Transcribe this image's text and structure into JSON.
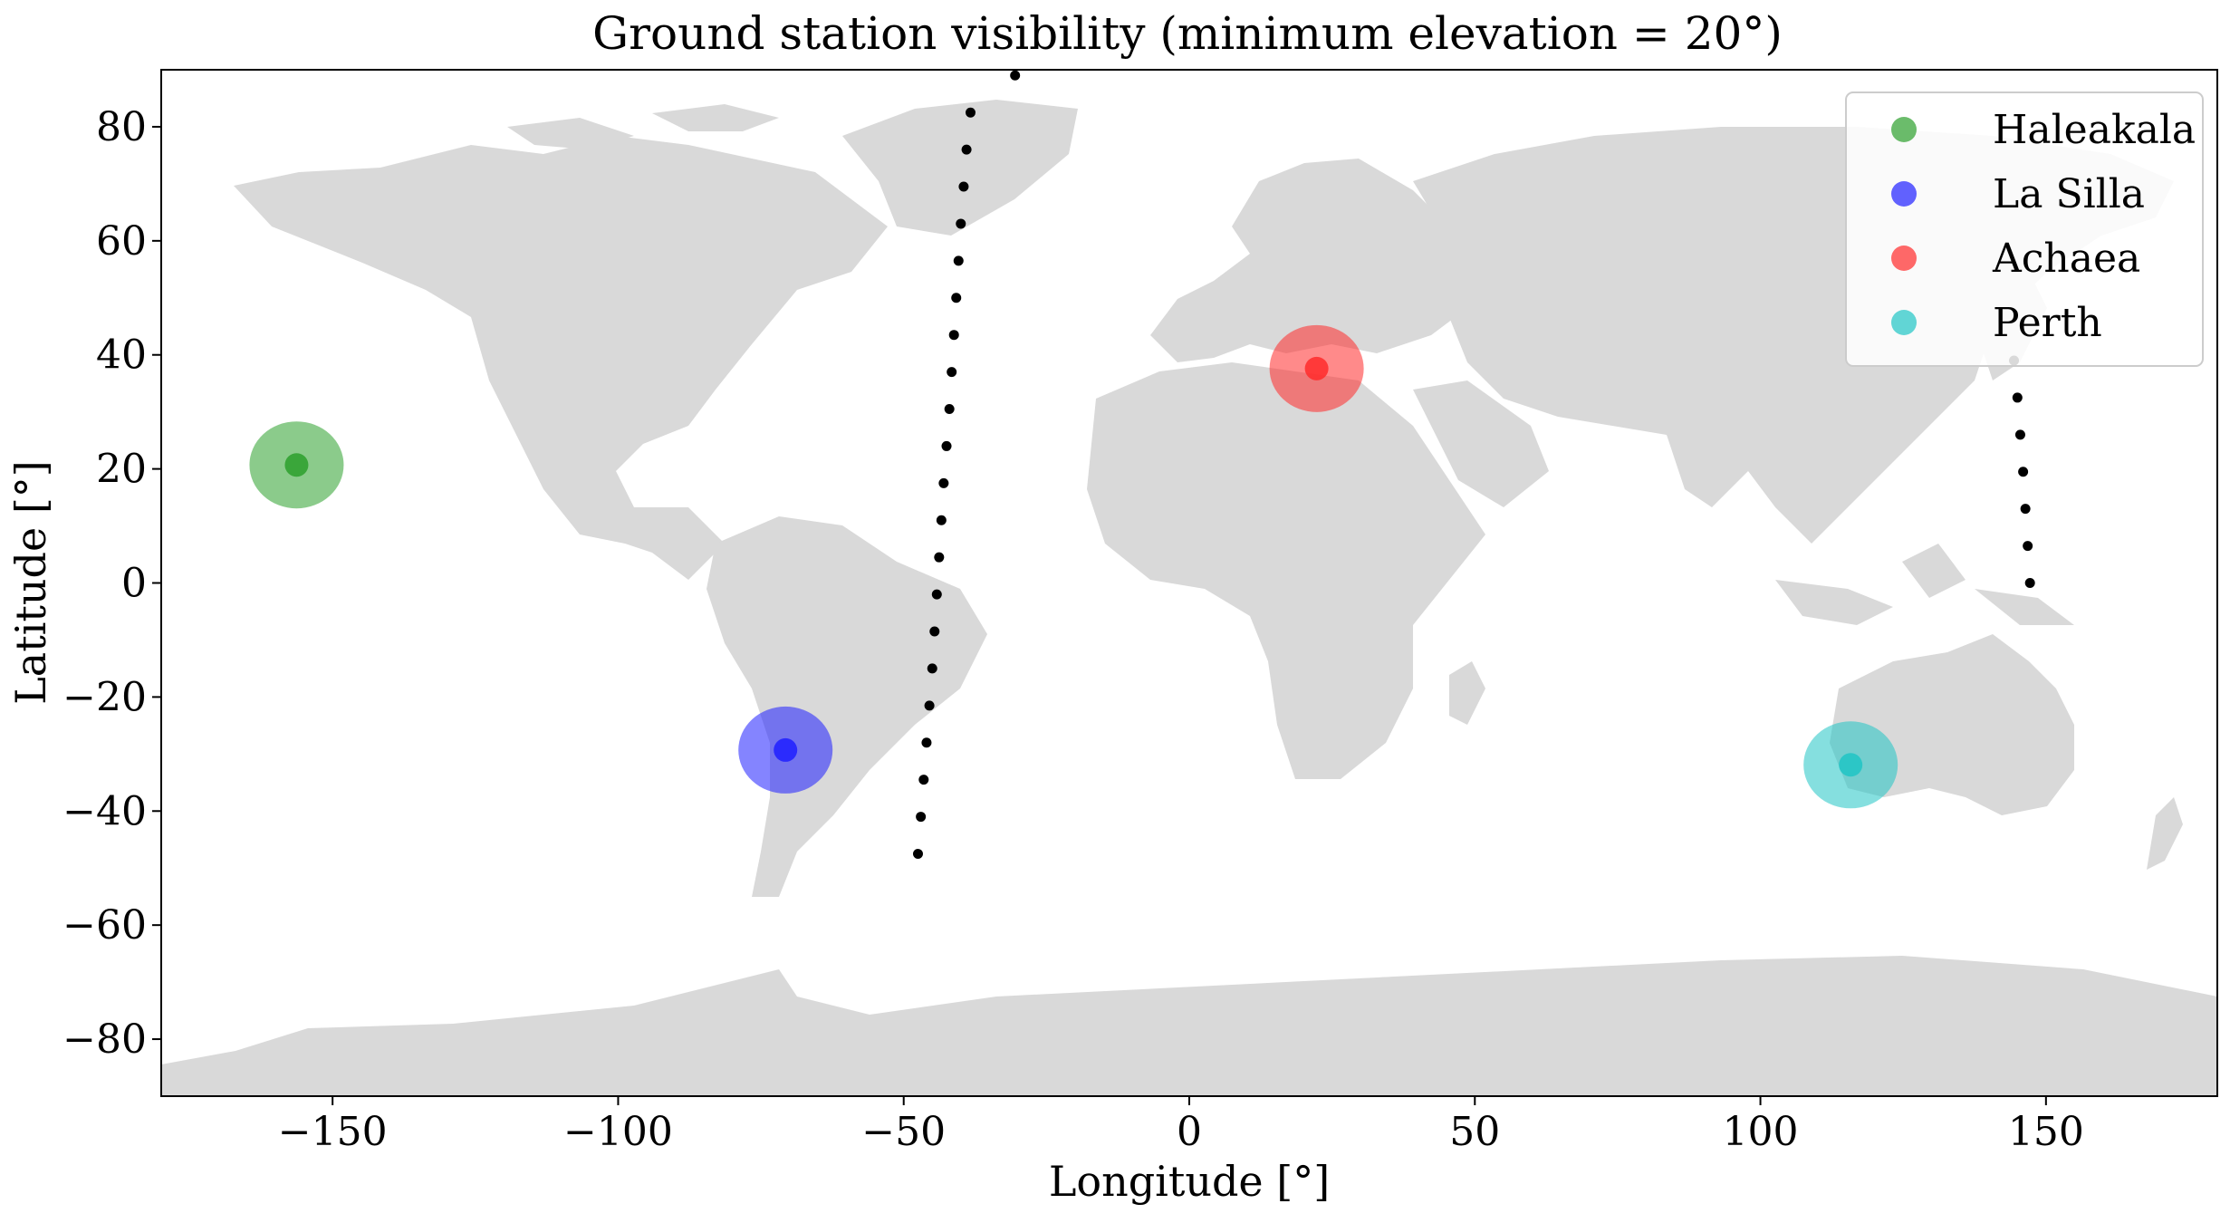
{
  "chart_data": {
    "type": "scatter",
    "title": "Ground station visibility (minimum elevation = 20°)",
    "xlabel": "Longitude [°]",
    "ylabel": "Latitude [°]",
    "xlim": [
      -180,
      180
    ],
    "ylim": [
      -90,
      90
    ],
    "xticks": [
      -150,
      -100,
      -50,
      0,
      50,
      100,
      150
    ],
    "xtick_labels": [
      "−150",
      "−100",
      "−50",
      "0",
      "50",
      "100",
      "150"
    ],
    "yticks": [
      -80,
      -60,
      -40,
      -20,
      0,
      20,
      40,
      60,
      80
    ],
    "ytick_labels": [
      "−80",
      "−60",
      "−40",
      "−20",
      "0",
      "20",
      "40",
      "60",
      "80"
    ],
    "grid": false,
    "legend_position": "top-right",
    "background_map": "world land masses (light gray)",
    "map_color": "#d9d9d9",
    "stations": [
      {
        "name": "Haleakala",
        "lon": -156.3,
        "lat": 20.7,
        "color": "#2ca02c"
      },
      {
        "name": "La Silla",
        "lon": -70.7,
        "lat": -29.3,
        "color": "#1f1fff"
      },
      {
        "name": "Achaea",
        "lon": 22.3,
        "lat": 37.6,
        "color": "#ff2a2a"
      },
      {
        "name": "Perth",
        "lon": 115.8,
        "lat": -31.9,
        "color": "#20c4c4"
      }
    ],
    "satellite_ground_track": {
      "color": "#000000",
      "points": [
        [
          -47.5,
          -47.5
        ],
        [
          -47.0,
          -41.0
        ],
        [
          -46.5,
          -34.5
        ],
        [
          -46.0,
          -28.0
        ],
        [
          -45.5,
          -21.5
        ],
        [
          -45.0,
          -15.0
        ],
        [
          -44.6,
          -8.5
        ],
        [
          -44.2,
          -2.0
        ],
        [
          -43.8,
          4.5
        ],
        [
          -43.4,
          11.0
        ],
        [
          -43.0,
          17.5
        ],
        [
          -42.5,
          24.0
        ],
        [
          -42.0,
          30.5
        ],
        [
          -41.6,
          37.0
        ],
        [
          -41.2,
          43.5
        ],
        [
          -40.8,
          50.0
        ],
        [
          -40.4,
          56.5
        ],
        [
          -40.0,
          63.0
        ],
        [
          -39.5,
          69.5
        ],
        [
          -39.0,
          76.0
        ],
        [
          -38.3,
          82.5
        ],
        [
          -30.5,
          89.0
        ],
        [
          147.2,
          0.0
        ],
        [
          146.8,
          6.5
        ],
        [
          146.4,
          13.0
        ],
        [
          146.0,
          19.5
        ],
        [
          145.5,
          26.0
        ],
        [
          145.0,
          32.5
        ],
        [
          144.4,
          39.0
        ]
      ]
    }
  }
}
